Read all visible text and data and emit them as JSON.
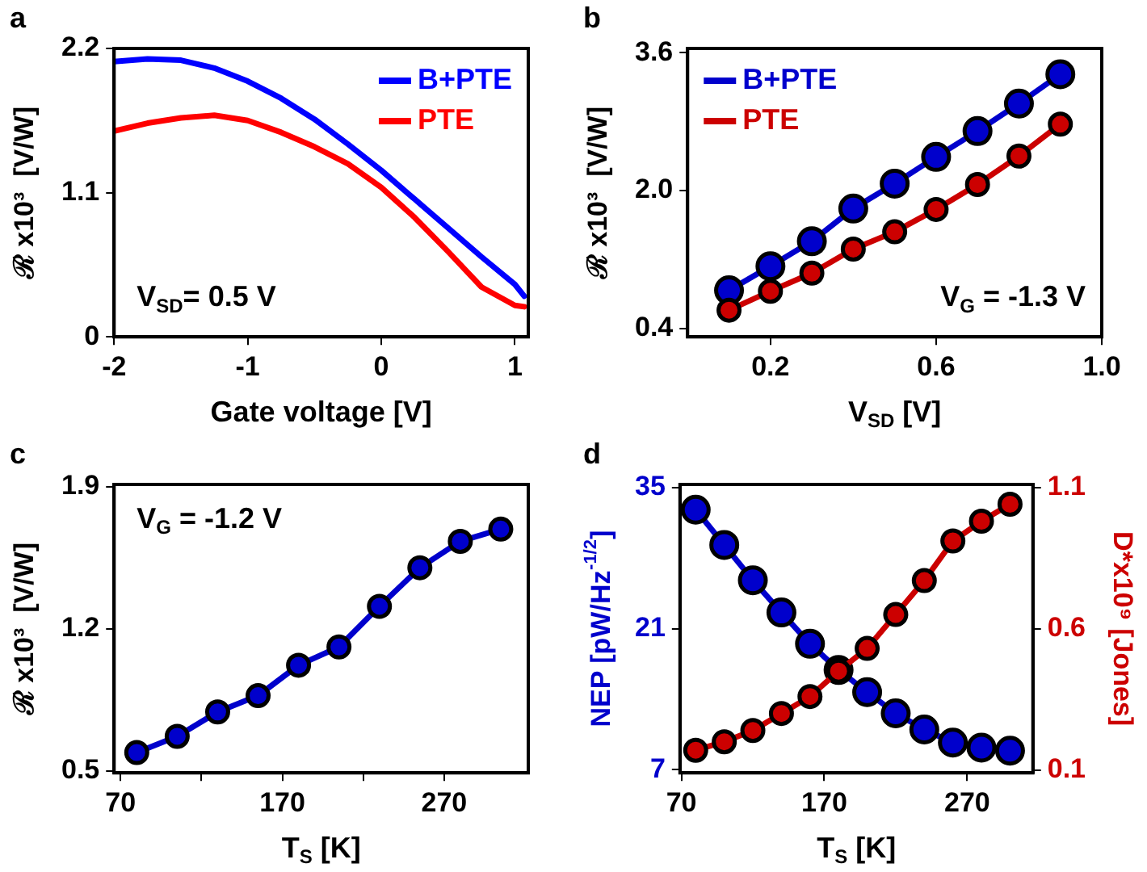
{
  "chart_data": [
    {
      "type": "line",
      "title": "a",
      "xlabel": "Gate voltage [V]",
      "ylabel": "ℛ x10³  [V/W]",
      "annotations": [
        "V$_{SD}$= 0.5 V"
      ],
      "x": [
        -2,
        -1.75,
        -1.5,
        -1.25,
        -1,
        -0.75,
        -0.5,
        -0.25,
        0,
        0.25,
        0.5,
        0.75,
        1,
        1.07
      ],
      "series": [
        {
          "name": "B+PTE",
          "color": "#0000ff",
          "values": [
            2.1,
            2.12,
            2.11,
            2.05,
            1.95,
            1.82,
            1.66,
            1.47,
            1.27,
            1.05,
            0.83,
            0.61,
            0.4,
            0.31
          ]
        },
        {
          "name": "PTE",
          "color": "#ff0000",
          "values": [
            1.57,
            1.63,
            1.67,
            1.69,
            1.65,
            1.56,
            1.45,
            1.32,
            1.14,
            0.91,
            0.65,
            0.38,
            0.24,
            0.23
          ]
        }
      ],
      "xlim": [
        -2,
        1.1
      ],
      "xticks": [
        -2,
        -1,
        0,
        1
      ],
      "ylim": [
        0,
        2.2
      ],
      "yticks": [
        0,
        1.1,
        2.2
      ],
      "grid": false,
      "legend": "top right",
      "marker": "none"
    },
    {
      "type": "line",
      "title": "b",
      "xlabel": "V$_{SD}$ [V]",
      "ylabel": "ℛ x10³  [V/W]",
      "annotations": [
        "V$_{G}$ = -1.3 V"
      ],
      "x": [
        0.1,
        0.2,
        0.3,
        0.4,
        0.5,
        0.6,
        0.7,
        0.8,
        0.9
      ],
      "series": [
        {
          "name": "B+PTE",
          "color": "#0000cc",
          "values": [
            0.84,
            1.12,
            1.41,
            1.79,
            2.08,
            2.39,
            2.69,
            3.01,
            3.35
          ]
        },
        {
          "name": "PTE",
          "color": "#cc0000",
          "values": [
            0.61,
            0.83,
            1.04,
            1.32,
            1.52,
            1.78,
            2.07,
            2.4,
            2.77
          ]
        }
      ],
      "xlim": [
        0,
        1
      ],
      "xticks": [
        0.2,
        0.6,
        {
          "value": 1,
          "label": "1.0"
        }
      ],
      "ylim": [
        0.3,
        3.65
      ],
      "yticks": [
        0.4,
        {
          "value": 2,
          "label": "2.0"
        },
        3.6
      ],
      "grid": false,
      "legend": "top left",
      "marker": "circle"
    },
    {
      "type": "line",
      "title": "c",
      "xlabel": "T$_{S}$ [K]",
      "ylabel": "ℛ x10³  [V/W]",
      "annotations": [
        "V$_{G}$ = -1.2 V"
      ],
      "x": [
        80,
        105,
        130,
        155,
        180,
        205,
        230,
        255,
        280,
        305
      ],
      "series": [
        {
          "color": "#0000cc",
          "values": [
            0.59,
            0.67,
            0.79,
            0.87,
            1.02,
            1.11,
            1.31,
            1.5,
            1.63,
            1.69
          ]
        }
      ],
      "xlim": [
        66,
        322
      ],
      "xticks": [
        70,
        {
          "value": 120,
          "label": null
        },
        170,
        {
          "value": 220,
          "label": null
        },
        270
      ],
      "ylim": [
        0.49,
        1.91
      ],
      "yticks": [
        0.5,
        1.2,
        1.9
      ],
      "grid": false,
      "marker": "circle"
    },
    {
      "type": "line",
      "title": "d",
      "xlabel": "T$_{S}$ [K]",
      "ylabel": "NEP [pW/Hz$^{-1/2}$]",
      "y2label": "D*x10⁹ [Jones]",
      "x": [
        80,
        100,
        120,
        140,
        160,
        180,
        200,
        220,
        240,
        260,
        280,
        300
      ],
      "series": [
        {
          "color": "#0000cc",
          "values": [
            32.8,
            29.3,
            25.8,
            22.6,
            19.5,
            16.9,
            14.7,
            12.6,
            11.0,
            9.7,
            9.2,
            8.9
          ]
        },
        {
          "color": "#cc0000",
          "axis": "y2",
          "values": [
            0.17,
            0.2,
            0.24,
            0.3,
            0.36,
            0.45,
            0.53,
            0.65,
            0.77,
            0.91,
            0.98,
            1.04
          ]
        }
      ],
      "xlim": [
        69,
        316
      ],
      "xticks": [
        70,
        170,
        270
      ],
      "ylim": [
        6.7,
        35.3
      ],
      "yticks": [
        7,
        21,
        35
      ],
      "y2lim": [
        0.09,
        1.11
      ],
      "y2ticks": [
        0.1,
        0.6,
        1.1
      ],
      "grid": false,
      "marker": "circle"
    }
  ]
}
